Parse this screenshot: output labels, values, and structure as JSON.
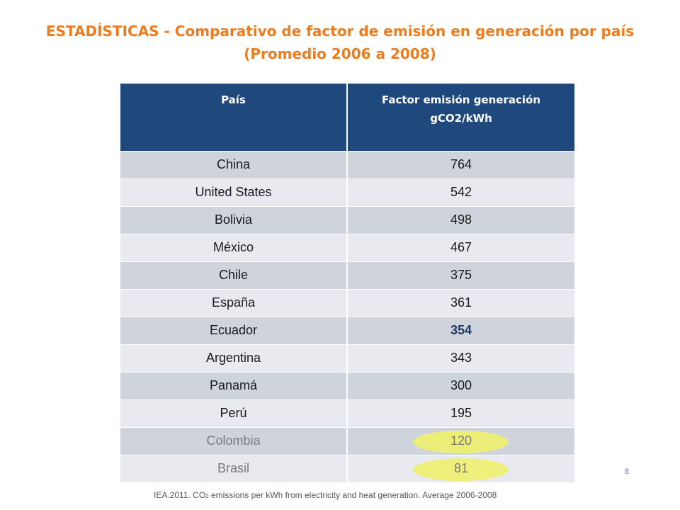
{
  "title": {
    "line1": "ESTADÍSTICAS - Comparativo de factor de emisión en generación por país",
    "line2": "(Promedio 2006 a 2008)"
  },
  "table": {
    "headers": {
      "country": "País",
      "factor_line1": "Factor emisión generación",
      "factor_line2": "gCO2/kWh"
    },
    "rows": [
      {
        "country": "China",
        "value": "764"
      },
      {
        "country": "United States",
        "value": "542"
      },
      {
        "country": "Bolivia",
        "value": "498"
      },
      {
        "country": "México",
        "value": "467"
      },
      {
        "country": "Chile",
        "value": "375"
      },
      {
        "country": "España",
        "value": "361"
      },
      {
        "country": "Ecuador",
        "value": "354"
      },
      {
        "country": "Argentina",
        "value": "343"
      },
      {
        "country": "Panamá",
        "value": "300"
      },
      {
        "country": "Perú",
        "value": "195"
      },
      {
        "country": "Colombia",
        "value": "120"
      },
      {
        "country": "Brasil",
        "value": "81"
      }
    ],
    "highlight_color": "#f0ef6e"
  },
  "page_number": "8",
  "source": {
    "prefix": "IEA.2011. CO",
    "subscript": "2",
    "suffix": " emissions per kWh from electricity and heat generation. Average 2006-2008"
  },
  "colors": {
    "title": "#f07b1c",
    "header_bg": "#1f497d",
    "row_dark": "#cfd3dc",
    "row_light": "#e8eaf0"
  }
}
